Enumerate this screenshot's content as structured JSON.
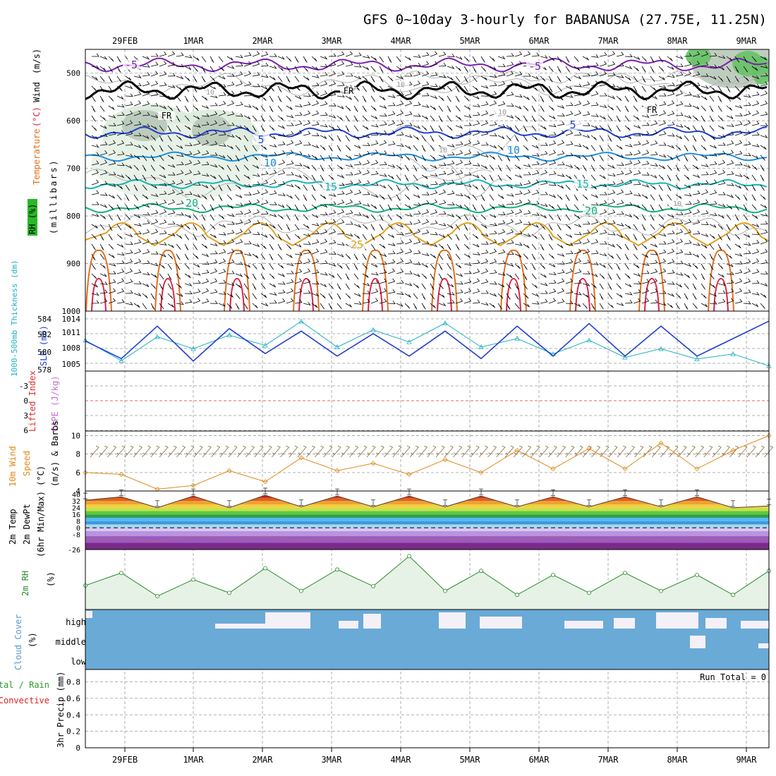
{
  "header": {
    "title": "GFS 0~10day 3-hourly for BABANUSA (27.75E, 11.25N)"
  },
  "dates": [
    "29FEB",
    "1MAR",
    "2MAR",
    "3MAR",
    "4MAR",
    "5MAR",
    "6MAR",
    "7MAR",
    "8MAR",
    "9MAR"
  ],
  "colors": {
    "wind_barb": "#000000",
    "temp_minus5": "#7a1fb0",
    "freezing": "#000000",
    "temp_5": "#1f3fd0",
    "temp_10": "#1e90e0",
    "temp_15": "#14b4b4",
    "temp_20": "#10b07a",
    "temp_25": "#e0a020",
    "temp_30": "#e07020",
    "temp_35": "#e02040",
    "rh_fill": "#e6f2e6",
    "slp": "#1f3fd0",
    "thickness": "#20b0c0",
    "lifted_index": "#e03030",
    "wind10m": "#e08a1a",
    "rh2m": "#2a8a2a",
    "cloud": "#6aaad6",
    "cloud_clear": "#f4f0f8",
    "precip_total": "#2a9a2a",
    "precip_conv": "#e02020"
  },
  "panels": {
    "sounding": {
      "labels": [
        "Wind",
        "(m/s)",
        "Temperature",
        "(°C)",
        "RH (%)"
      ],
      "unit": "(millibars)",
      "ticks": [
        "500",
        "600",
        "700",
        "800",
        "900",
        "1000"
      ]
    },
    "slp": {
      "label_thickness": "1000-500mb Thickness (dm)",
      "label_slp": "SLP (mb)",
      "thickness_ticks": [
        "584",
        "582",
        "580",
        "578"
      ],
      "slp_ticks": [
        "1014",
        "1011",
        "1008",
        "1005"
      ]
    },
    "stability": {
      "label_li": "Lifted Index",
      "label_cape": "CAPE (J/kg)",
      "ticks": [
        "-3",
        "0",
        "3",
        "6"
      ]
    },
    "wind10m": {
      "label_title": "10m Wind",
      "label_speed": "Speed",
      "label_unit": "(m/s) & Barbs",
      "ticks": [
        "10",
        "8",
        "6",
        "4"
      ]
    },
    "temp2m": {
      "label1": "2m Temp",
      "label2": "2m DewPt",
      "label3": "(6hr Min/Max) (°C)",
      "ticks": [
        "40",
        "32",
        "24",
        "16",
        "8",
        "0",
        "-8",
        "-26"
      ]
    },
    "rh2m": {
      "label": "2m RH",
      "unit": "(%)"
    },
    "cloud": {
      "label": "Cloud Cover",
      "unit": "(%)",
      "levels": [
        "high",
        "middle",
        "low"
      ]
    },
    "precip": {
      "label_total": "Total / Rain",
      "label_conv": "Convective",
      "label_unit": "3hr Precip (mm)",
      "ticks": [
        "0.8",
        "0.6",
        "0.4",
        "0.2",
        "0"
      ],
      "run_total": "Run Total = 0"
    }
  },
  "contour_labels": [
    "-5",
    "-5",
    "FR",
    "FR",
    "FR",
    "5",
    "5",
    "10",
    "10",
    "15",
    "15",
    "20",
    "20",
    "25",
    "10",
    "10",
    "10",
    "10",
    "10"
  ],
  "chart_data": [
    {
      "type": "line",
      "title": "1000-500mb Thickness (dm) and SLP (mb)",
      "x": [
        "29FEB 00",
        "29FEB 12",
        "1MAR 00",
        "1MAR 12",
        "2MAR 00",
        "2MAR 12",
        "3MAR 00",
        "3MAR 12",
        "4MAR 00",
        "4MAR 12",
        "5MAR 00",
        "5MAR 12",
        "6MAR 00",
        "6MAR 12",
        "7MAR 00",
        "7MAR 12",
        "8MAR 00",
        "8MAR 12",
        "9MAR 00",
        "9MAR 06"
      ],
      "series": [
        {
          "name": "SLP (mb)",
          "values": [
            1009.5,
            1006.0,
            1012.5,
            1005.5,
            1012.0,
            1007.0,
            1011.5,
            1006.5,
            1011.0,
            1006.5,
            1011.5,
            1006.0,
            1012.5,
            1006.5,
            1013.0,
            1006.5,
            1012.5,
            1006.5,
            1010.0,
            1013.5
          ]
        },
        {
          "name": "1000-500mb Thickness (dm)",
          "values": [
            581.6,
            579.2,
            582.0,
            580.6,
            582.2,
            581.0,
            583.8,
            580.8,
            582.8,
            581.4,
            583.6,
            580.8,
            581.8,
            580.0,
            581.6,
            579.6,
            580.6,
            579.4,
            580.0,
            578.6
          ]
        }
      ],
      "ylim_slp": [
        1003.5,
        1015.5
      ],
      "ylim_thickness": [
        578,
        585
      ]
    },
    {
      "type": "line",
      "title": "10m Wind Speed (m/s)",
      "x": [
        "29FEB 00",
        "29FEB 12",
        "1MAR 00",
        "1MAR 12",
        "2MAR 00",
        "2MAR 12",
        "3MAR 00",
        "3MAR 12",
        "4MAR 00",
        "4MAR 12",
        "5MAR 00",
        "5MAR 12",
        "6MAR 00",
        "6MAR 12",
        "7MAR 00",
        "7MAR 12",
        "8MAR 00",
        "8MAR 12",
        "9MAR 00",
        "9MAR 06"
      ],
      "series": [
        {
          "name": "10m Wind Speed",
          "values": [
            6.0,
            5.8,
            4.2,
            4.6,
            6.2,
            5.0,
            7.6,
            6.2,
            7.0,
            5.8,
            7.4,
            6.0,
            8.4,
            6.4,
            8.6,
            6.4,
            9.2,
            6.4,
            8.4,
            10.0
          ]
        }
      ],
      "ylim": [
        4,
        10.5
      ]
    },
    {
      "type": "area",
      "title": "2m Temp (°C)",
      "x": [
        "29FEB 00",
        "29FEB 12",
        "1MAR 00",
        "1MAR 12",
        "2MAR 00",
        "2MAR 12",
        "3MAR 00",
        "3MAR 12",
        "4MAR 00",
        "4MAR 12",
        "5MAR 00",
        "5MAR 12",
        "6MAR 00",
        "6MAR 12",
        "7MAR 00",
        "7MAR 12",
        "8MAR 00",
        "8MAR 12",
        "9MAR 00",
        "9MAR 06"
      ],
      "series": [
        {
          "name": "2m Temp",
          "values": [
            33,
            37,
            24,
            38,
            24,
            39,
            25,
            38,
            25,
            38,
            25,
            38,
            25,
            37,
            25,
            37,
            25,
            37,
            24,
            26
          ]
        },
        {
          "name": "2m DewPt",
          "values": [
            -14,
            -12,
            -16,
            -10,
            -13,
            -11,
            -15,
            -12,
            -14,
            -13,
            -14,
            -12,
            -14,
            -11,
            -15,
            -13,
            -14,
            -12,
            -14,
            -13
          ]
        }
      ],
      "ylim": [
        -26,
        44
      ]
    },
    {
      "type": "area",
      "title": "2m RH (%)",
      "x": [
        "29FEB 00",
        "29FEB 12",
        "1MAR 00",
        "1MAR 12",
        "2MAR 00",
        "2MAR 12",
        "3MAR 00",
        "3MAR 12",
        "4MAR 00",
        "4MAR 12",
        "5MAR 00",
        "5MAR 12",
        "6MAR 00",
        "6MAR 12",
        "7MAR 00",
        "7MAR 12",
        "8MAR 00",
        "8MAR 12",
        "9MAR 00",
        "9MAR 06"
      ],
      "series": [
        {
          "name": "2m RH",
          "values": [
            36,
            55,
            20,
            45,
            25,
            62,
            28,
            60,
            35,
            80,
            28,
            58,
            22,
            52,
            25,
            55,
            28,
            52,
            22,
            58
          ]
        }
      ],
      "ylim": [
        0,
        90
      ]
    },
    {
      "type": "bar",
      "title": "3hr Precip (mm)",
      "series": [
        {
          "name": "Total / Rain",
          "values": [
            0,
            0,
            0,
            0,
            0,
            0,
            0,
            0,
            0,
            0
          ]
        },
        {
          "name": "Convective",
          "values": [
            0,
            0,
            0,
            0,
            0,
            0,
            0,
            0,
            0,
            0
          ]
        }
      ],
      "ylim": [
        0,
        1.0
      ]
    }
  ]
}
